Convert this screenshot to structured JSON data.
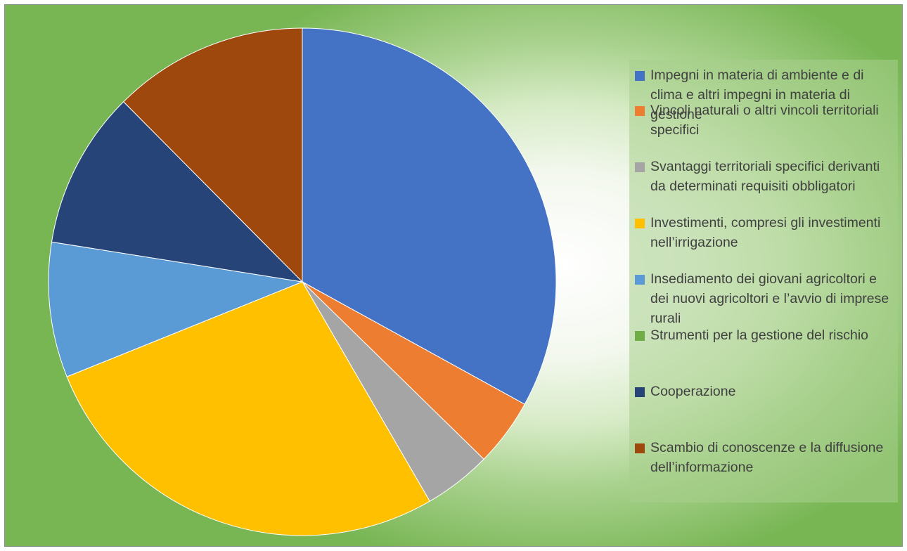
{
  "chart_data": {
    "type": "pie",
    "title": "",
    "start_angle_deg": 0,
    "direction": "clockwise",
    "slices": [
      {
        "label": "Impegni in materia di ambiente e di clima e altri impegni in materia di gestione",
        "value": 34.5,
        "color": "#4472C4"
      },
      {
        "label": "Vincoli naturali o altri vincoli territoriali specifici",
        "value": 4.5,
        "color": "#ED7D31"
      },
      {
        "label": "Svantaggi territoriali specifici derivanti da determinati requisiti obbligatori",
        "value": 4.5,
        "color": "#A5A5A5"
      },
      {
        "label": "Investimenti, compresi gli investimenti nell’irrigazione",
        "value": 28.5,
        "color": "#FFC000"
      },
      {
        "label": "Insediamento dei giovani agricoltori e dei nuovi agricoltori e l’avvio di imprese rurali",
        "value": 9.0,
        "color": "#5B9BD5"
      },
      {
        "label": "Strumenti per la gestione del rischio",
        "value": 0,
        "color": "#70AD47"
      },
      {
        "label": "Cooperazione",
        "value": 10.5,
        "color": "#264478"
      },
      {
        "label": "Scambio di conoscenze e la diffusione dell’informazione",
        "value": 13.0,
        "color": "#9E480E"
      }
    ],
    "legend_position": "right"
  }
}
